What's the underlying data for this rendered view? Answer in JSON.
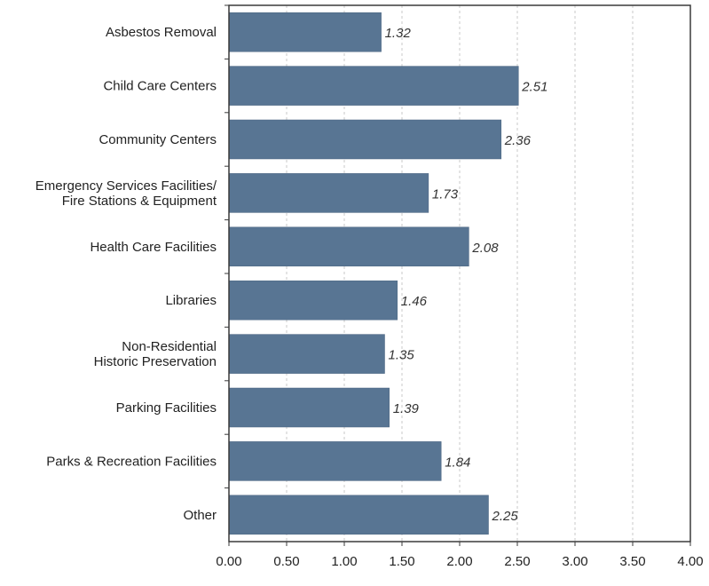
{
  "chart_data": {
    "type": "bar",
    "orientation": "horizontal",
    "title": "",
    "xlabel": "",
    "ylabel": "",
    "categories": [
      [
        "Asbestos Removal"
      ],
      [
        "Child Care Centers"
      ],
      [
        "Community Centers"
      ],
      [
        "Emergency Services Facilities/",
        "Fire Stations & Equipment"
      ],
      [
        "Health Care Facilities"
      ],
      [
        "Libraries"
      ],
      [
        "Non-Residential",
        "Historic Preservation"
      ],
      [
        "Parking Facilities"
      ],
      [
        "Parks & Recreation Facilities"
      ],
      [
        "Other"
      ]
    ],
    "values": [
      1.32,
      2.51,
      2.36,
      1.73,
      2.08,
      1.46,
      1.35,
      1.39,
      1.84,
      2.25
    ],
    "value_labels": [
      "1.32",
      "2.51",
      "2.36",
      "1.73",
      "2.08",
      "1.46",
      "1.35",
      "1.39",
      "1.84",
      "2.25"
    ],
    "xlim": [
      0,
      4
    ],
    "xticks": [
      "0.00",
      "0.50",
      "1.00",
      "1.50",
      "2.00",
      "2.50",
      "3.00",
      "3.50",
      "4.00"
    ],
    "grid": "vertical-dashed",
    "legend": "none",
    "colors": {
      "bar": "#587593",
      "bar_stroke": "#4a6380",
      "grid": "#c8c8c8",
      "axis": "#3a3a3a",
      "text": "#222222"
    }
  }
}
